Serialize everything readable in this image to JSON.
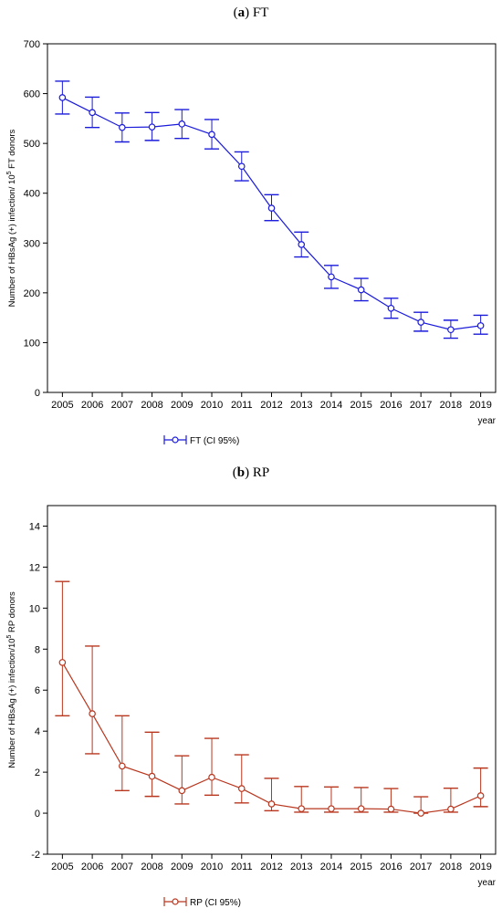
{
  "panels": [
    {
      "label_letter": "a",
      "label_text": "FT",
      "chart_data": {
        "type": "line",
        "x": [
          2005,
          2006,
          2007,
          2008,
          2009,
          2010,
          2011,
          2012,
          2013,
          2014,
          2015,
          2016,
          2017,
          2018,
          2019
        ],
        "series": [
          {
            "name": "FT (CI 95%)",
            "values": [
              592,
              562,
              532,
              533,
              539,
              518,
              454,
              370,
              297,
              232,
              206,
              169,
              141,
              126,
              134
            ],
            "ci_low": [
              559,
              532,
              503,
              506,
              510,
              489,
              425,
              345,
              272,
              209,
              184,
              149,
              123,
              109,
              117
            ],
            "ci_high": [
              625,
              593,
              561,
              562,
              568,
              548,
              483,
              397,
              322,
              255,
              229,
              189,
              161,
              145,
              155
            ]
          }
        ],
        "color": "#1a1adb",
        "ylabel_pre": "Number of HBsAg (+) infection/ 10",
        "ylabel_sup": "5",
        "ylabel_post": " FT donors",
        "xlabel": "year",
        "ylim": [
          0,
          700
        ],
        "yticks": [
          0,
          100,
          200,
          300,
          400,
          500,
          600,
          700
        ],
        "grid": false,
        "legend_position": "bottom-left"
      }
    },
    {
      "label_letter": "b",
      "label_text": "RP",
      "chart_data": {
        "type": "line",
        "x": [
          2005,
          2006,
          2007,
          2008,
          2009,
          2010,
          2011,
          2012,
          2013,
          2014,
          2015,
          2016,
          2017,
          2018,
          2019
        ],
        "series": [
          {
            "name": "RP (CI 95%)",
            "values": [
              7.35,
              4.85,
              2.3,
              1.8,
              1.1,
              1.75,
              1.2,
              0.45,
              0.22,
              0.22,
              0.22,
              0.2,
              0.0,
              0.2,
              0.85
            ],
            "ci_low": [
              4.75,
              2.9,
              1.1,
              0.82,
              0.45,
              0.88,
              0.5,
              0.12,
              0.05,
              0.05,
              0.05,
              0.05,
              0.0,
              0.05,
              0.32
            ],
            "ci_high": [
              11.3,
              8.15,
              4.75,
              3.95,
              2.8,
              3.65,
              2.85,
              1.7,
              1.3,
              1.28,
              1.25,
              1.2,
              0.8,
              1.22,
              2.2
            ]
          }
        ],
        "color": "#b8361e",
        "ylabel_pre": "Number of HBsAg (+) infection/10",
        "ylabel_sup": "5",
        "ylabel_post": " RP donors",
        "xlabel": "year",
        "ylim": [
          -2,
          15
        ],
        "yticks": [
          -2,
          0,
          2,
          4,
          6,
          8,
          10,
          12,
          14
        ],
        "grid": false,
        "legend_position": "bottom-left"
      }
    }
  ]
}
